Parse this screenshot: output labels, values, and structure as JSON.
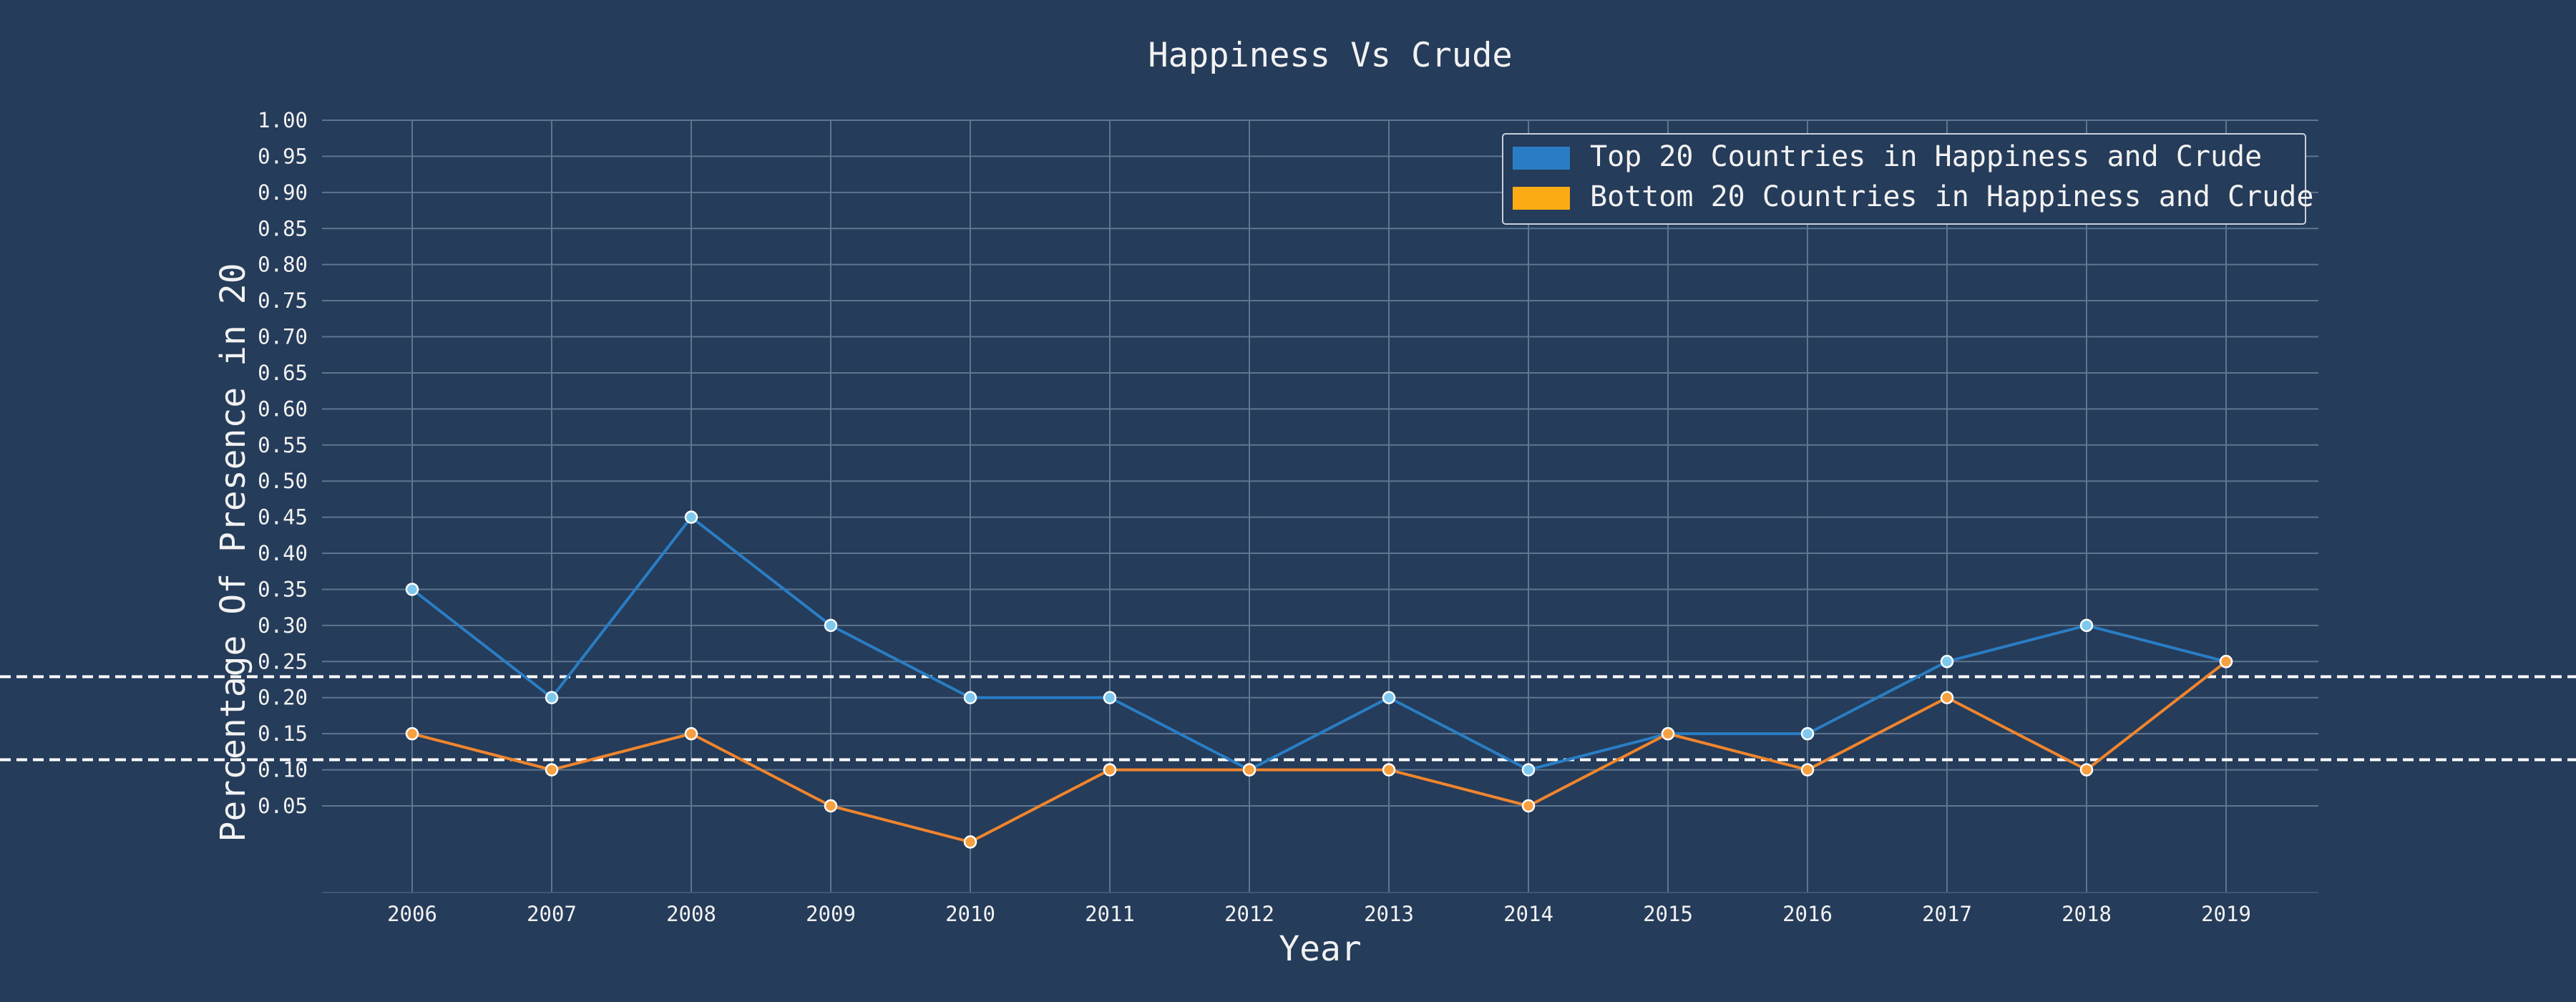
{
  "chart_data": {
    "type": "line",
    "title": "Happiness Vs Crude",
    "xlabel": "Year",
    "ylabel": "Percentage Of Presence in 20",
    "x": [
      2006,
      2007,
      2008,
      2009,
      2010,
      2011,
      2012,
      2013,
      2014,
      2015,
      2016,
      2017,
      2018,
      2019
    ],
    "y_ticks": [
      0.05,
      0.1,
      0.15,
      0.2,
      0.25,
      0.3,
      0.35,
      0.4,
      0.45,
      0.5,
      0.55,
      0.6,
      0.65,
      0.7,
      0.75,
      0.8,
      0.85,
      0.9,
      0.95,
      1.0
    ],
    "ylim": [
      -0.07,
      1.0
    ],
    "grid": true,
    "legend_position": "top-right",
    "series": [
      {
        "name": "Top 20 Countries in Happiness and Crude",
        "color": "#2a7dc4",
        "values": [
          0.35,
          0.2,
          0.45,
          0.3,
          0.2,
          0.2,
          0.1,
          0.2,
          0.1,
          0.15,
          0.15,
          0.25,
          0.3,
          0.25
        ],
        "mean_line": 0.229
      },
      {
        "name": "Bottom 20 Countries in Happiness and Crude",
        "color": "#f0852d",
        "legend_color": "#fbab14",
        "values": [
          0.15,
          0.1,
          0.15,
          0.05,
          0.0,
          0.1,
          0.1,
          0.1,
          0.05,
          0.15,
          0.1,
          0.2,
          0.1,
          0.25
        ],
        "mean_line": 0.114
      }
    ]
  }
}
